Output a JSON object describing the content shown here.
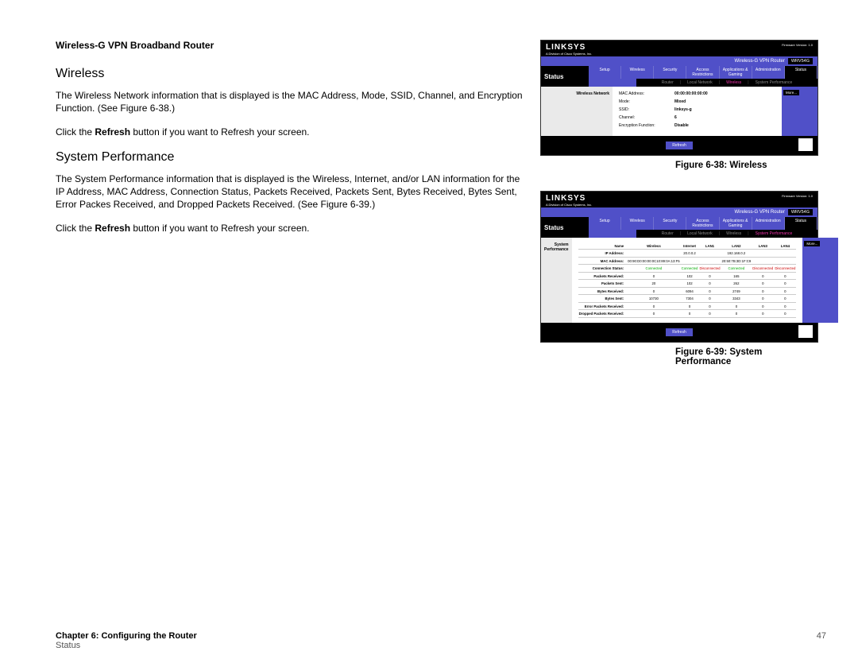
{
  "doc_title": "Wireless-G VPN Broadband Router",
  "section1_h": "Wireless",
  "para1": "The Wireless Network information that is displayed is the MAC Address, Mode, SSID, Channel, and Encryption Function. (See Figure 6-38.)",
  "para2a": "Click the ",
  "para2b": "Refresh",
  "para2c": " button if you want to Refresh your screen.",
  "section2_h": "System Performance",
  "para3": "The System Performance information that is displayed is the Wireless, Internet, and/or LAN information for the IP Address, MAC Address, Connection Status, Packets Received, Packets Sent, Bytes Received, Bytes Sent, Error Packes Received, and Dropped Packets Received. (See Figure 6-39.)",
  "para4a": "Click the ",
  "para4b": "Refresh",
  "para4c": " button if you want to Refresh your screen.",
  "fig1_caption": "Figure 6-38: Wireless",
  "fig2_caption": "Figure 6-39: System Performance",
  "footer_chapter": "Chapter 6: Configuring the Router",
  "footer_sub": "Status",
  "page_num": "47",
  "linksys": {
    "logo": "LINKSYS",
    "logo_sub": "A Division of Cisco Systems, Inc.",
    "fw": "Firmware Version: 1.0",
    "banner": "Wireless-G VPN Router",
    "model": "WRV54G",
    "status": "Status",
    "tabs": [
      "Setup",
      "Wireless",
      "Security",
      "Access Restrictions",
      "Applications & Gaming",
      "Administration",
      "Status"
    ],
    "more": "More..."
  },
  "fig1": {
    "sidebar": "Wireless Network",
    "subtabs": [
      "Router",
      "Local Network",
      "Wireless",
      "System Performance"
    ],
    "rows": [
      {
        "k": "MAC Address:",
        "v": "00:00:00:00:00:00"
      },
      {
        "k": "Mode:",
        "v": "Mixed"
      },
      {
        "k": "SSID:",
        "v": "linksys-g"
      },
      {
        "k": "Channel:",
        "v": "6"
      },
      {
        "k": "Encryption Function:",
        "v": "Disable"
      }
    ],
    "refresh": "Refresh"
  },
  "fig2": {
    "sidebar": "System Performance",
    "subtabs": [
      "Router",
      "Local Network",
      "Wireless",
      "System Performance"
    ],
    "cols": [
      "Name",
      "Wireless",
      "Internet",
      "LAN1",
      "LAN2",
      "LAN3",
      "LAN4"
    ],
    "ip": {
      "l": "IP Address:",
      "v": [
        "",
        "20.0.0.2",
        "",
        "192.168.0.2",
        "",
        ""
      ]
    },
    "mac": {
      "l": "MAC Address:",
      "v": [
        "00:90:D0:00:00:0C10:89:0A:13:F5",
        "",
        "",
        "20:50:7B:3D:1F:C9",
        "",
        ""
      ]
    },
    "conn": {
      "l": "Connection Status:",
      "v": [
        {
          "t": "Connected",
          "c": "green"
        },
        {
          "t": "Connected",
          "c": "green"
        },
        {
          "t": "Disconnected",
          "c": "red"
        },
        {
          "t": "Connected",
          "c": "green"
        },
        {
          "t": "Disconnected",
          "c": "red"
        },
        {
          "t": "Disconnected",
          "c": "red"
        }
      ]
    },
    "rows": [
      {
        "l": "Packets Received:",
        "v": [
          "0",
          "102",
          "0",
          "165",
          "0",
          "0"
        ]
      },
      {
        "l": "Packets Sent:",
        "v": [
          "20",
          "102",
          "0",
          "262",
          "0",
          "0"
        ]
      },
      {
        "l": "Bytes Received:",
        "v": [
          "0",
          "6094",
          "0",
          "2749",
          "0",
          "0"
        ]
      },
      {
        "l": "Bytes Sent:",
        "v": [
          "10730",
          "7304",
          "0",
          "3343",
          "0",
          "0"
        ]
      },
      {
        "l": "Error Packets Received:",
        "v": [
          "0",
          "0",
          "0",
          "0",
          "0",
          "0"
        ]
      },
      {
        "l": "Dropped Packets Received:",
        "v": [
          "0",
          "0",
          "0",
          "0",
          "0",
          "0"
        ]
      }
    ],
    "refresh": "Refresh"
  }
}
